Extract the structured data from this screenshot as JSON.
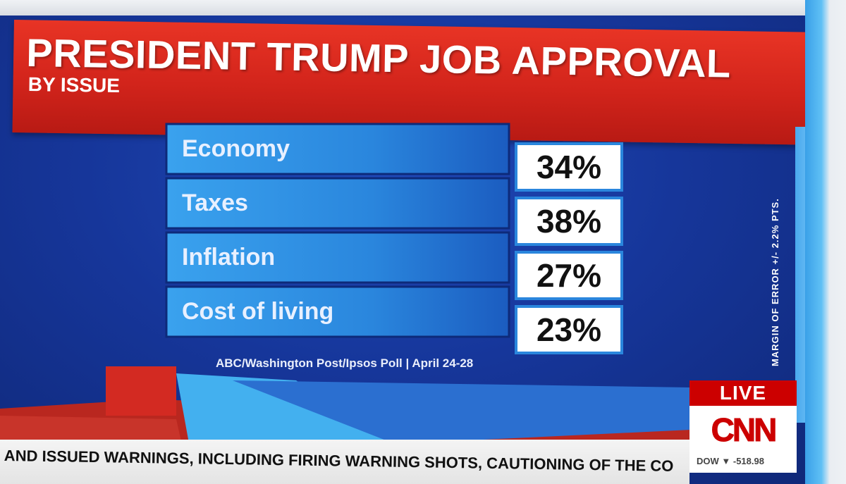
{
  "title": "PRESIDENT TRUMP JOB APPROVAL",
  "subtitle": "BY ISSUE",
  "source": "ABC/Washington Post/Ipsos Poll | April 24-28",
  "margin_note": "MARGIN OF ERROR +/- 2.2% PTS.",
  "live_label": "LIVE",
  "network": "CNN",
  "stock_ticker": "DOW ▼ -518.98",
  "news_ticker": "AND ISSUED WARNINGS, INCLUDING FIRING WARNING SHOTS, CAUTIONING OF THE CO",
  "colors": {
    "banner_red": "#d2241b",
    "background_blue": "#16369a",
    "bar_blue": "#2f8fe4",
    "value_box": "#ffffff"
  },
  "chart_data": {
    "type": "bar",
    "orientation": "horizontal",
    "title": "PRESIDENT TRUMP JOB APPROVAL",
    "subtitle": "BY ISSUE",
    "categories": [
      "Economy",
      "Taxes",
      "Inflation",
      "Cost of living"
    ],
    "values": [
      34,
      38,
      27,
      23
    ],
    "value_labels": [
      "34%",
      "38%",
      "27%",
      "23%"
    ],
    "unit": "%"
  }
}
